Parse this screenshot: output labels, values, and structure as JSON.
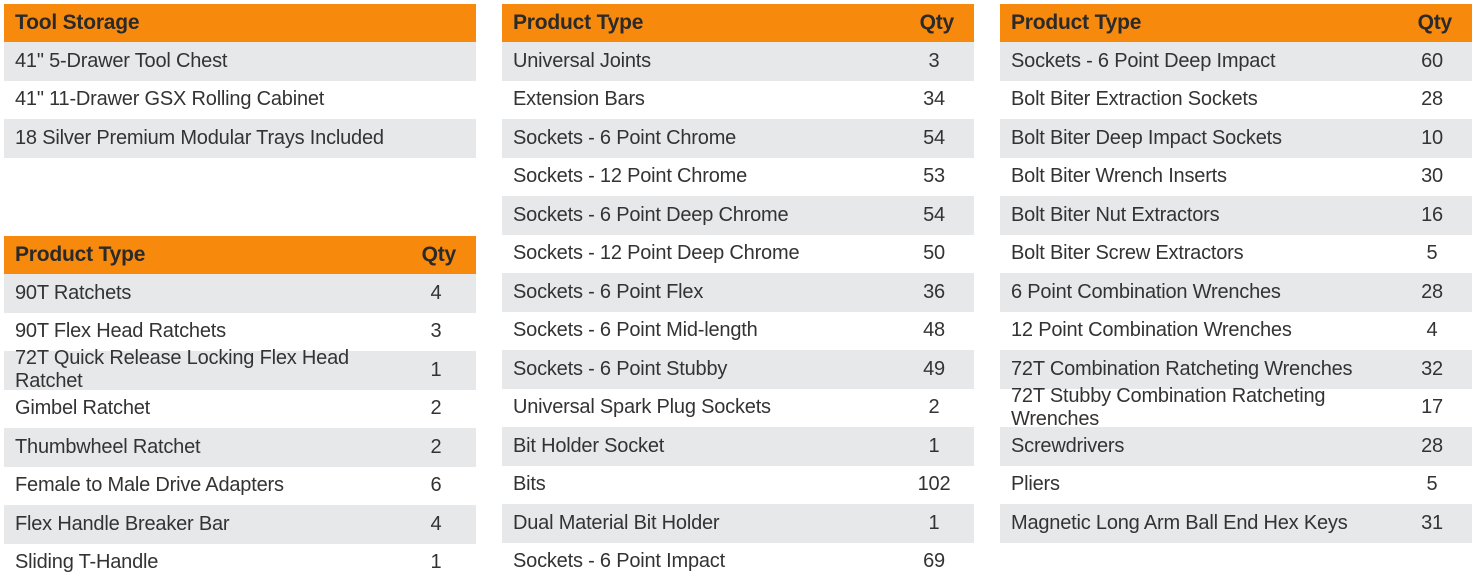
{
  "tool_storage": {
    "header": "Tool Storage",
    "rows": [
      "41\" 5-Drawer Tool Chest",
      "41\" 11-Drawer GSX Rolling Cabinet",
      "18 Silver Premium Modular Trays Included"
    ]
  },
  "table_left": {
    "header": {
      "type": "Product Type",
      "qty": "Qty"
    },
    "rows": [
      {
        "name": "90T Ratchets",
        "qty": "4"
      },
      {
        "name": "90T Flex Head Ratchets",
        "qty": "3"
      },
      {
        "name": "72T Quick Release Locking Flex Head Ratchet",
        "qty": "1"
      },
      {
        "name": "Gimbel Ratchet",
        "qty": "2"
      },
      {
        "name": "Thumbwheel Ratchet",
        "qty": "2"
      },
      {
        "name": "Female to Male Drive Adapters",
        "qty": "6"
      },
      {
        "name": "Flex Handle Breaker Bar",
        "qty": "4"
      },
      {
        "name": "Sliding T-Handle",
        "qty": "1"
      }
    ]
  },
  "table_middle": {
    "header": {
      "type": "Product Type",
      "qty": "Qty"
    },
    "rows": [
      {
        "name": "Universal Joints",
        "qty": "3"
      },
      {
        "name": "Extension Bars",
        "qty": "34"
      },
      {
        "name": "Sockets - 6 Point Chrome",
        "qty": "54"
      },
      {
        "name": "Sockets - 12 Point Chrome",
        "qty": "53"
      },
      {
        "name": "Sockets - 6 Point Deep Chrome",
        "qty": "54"
      },
      {
        "name": "Sockets - 12 Point Deep Chrome",
        "qty": "50"
      },
      {
        "name": "Sockets - 6 Point Flex",
        "qty": "36"
      },
      {
        "name": "Sockets - 6 Point Mid-length",
        "qty": "48"
      },
      {
        "name": "Sockets - 6 Point Stubby",
        "qty": "49"
      },
      {
        "name": "Universal Spark Plug Sockets",
        "qty": "2"
      },
      {
        "name": "Bit Holder Socket",
        "qty": "1"
      },
      {
        "name": "Bits",
        "qty": "102"
      },
      {
        "name": "Dual Material Bit Holder",
        "qty": "1"
      },
      {
        "name": "Sockets - 6 Point Impact",
        "qty": "69"
      }
    ]
  },
  "table_right": {
    "header": {
      "type": "Product Type",
      "qty": "Qty"
    },
    "rows": [
      {
        "name": "Sockets - 6 Point Deep Impact",
        "qty": "60"
      },
      {
        "name": "Bolt Biter Extraction Sockets",
        "qty": "28"
      },
      {
        "name": "Bolt Biter Deep Impact Sockets",
        "qty": "10"
      },
      {
        "name": "Bolt Biter Wrench Inserts",
        "qty": "30"
      },
      {
        "name": "Bolt Biter Nut Extractors",
        "qty": "16"
      },
      {
        "name": "Bolt Biter Screw Extractors",
        "qty": "5"
      },
      {
        "name": "6 Point Combination Wrenches",
        "qty": "28"
      },
      {
        "name": "12 Point Combination Wrenches",
        "qty": "4"
      },
      {
        "name": "72T Combination Ratcheting Wrenches",
        "qty": "32"
      },
      {
        "name": "72T Stubby Combination Ratcheting Wrenches",
        "qty": "17"
      },
      {
        "name": "Screwdrivers",
        "qty": "28"
      },
      {
        "name": "Pliers",
        "qty": "5"
      },
      {
        "name": "Magnetic Long Arm Ball End Hex Keys",
        "qty": "31"
      }
    ]
  },
  "colors": {
    "header_bg": "#f7890d",
    "row_shade": "#e6e8ea",
    "text": "#333333"
  }
}
